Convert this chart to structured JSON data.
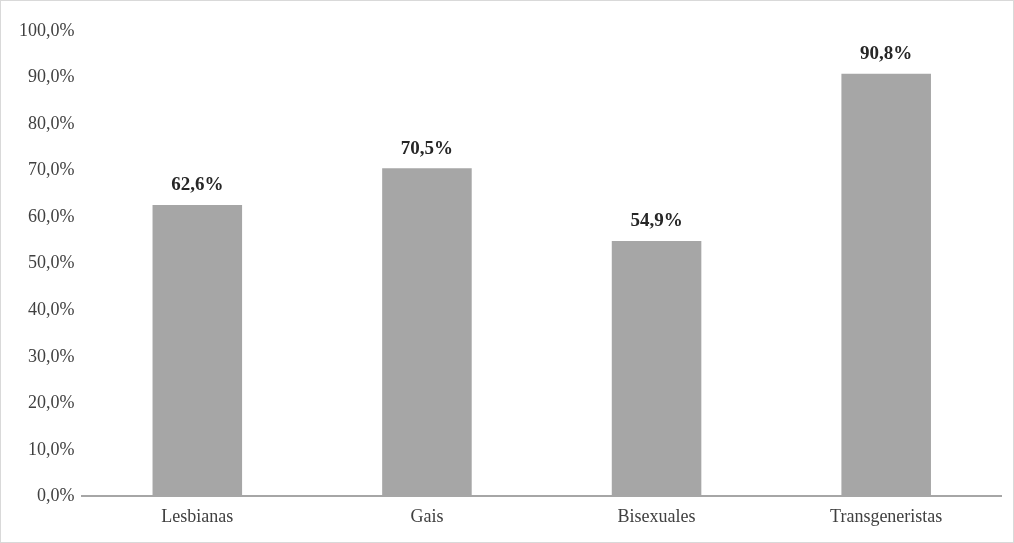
{
  "chart_data": {
    "type": "bar",
    "categories": [
      "Lesbianas",
      "Gais",
      "Bisexuales",
      "Transgeneristas"
    ],
    "values": [
      62.6,
      70.5,
      54.9,
      90.8
    ],
    "value_labels": [
      "62,6%",
      "70,5%",
      "54,9%",
      "90,8%"
    ],
    "color": "#a6a6a6",
    "ylim": [
      0,
      100
    ],
    "yticks": [
      {
        "value": 0,
        "label": "0,0%"
      },
      {
        "value": 10,
        "label": "10,0%"
      },
      {
        "value": 20,
        "label": "20,0%"
      },
      {
        "value": 30,
        "label": "30,0%"
      },
      {
        "value": 40,
        "label": "40,0%"
      },
      {
        "value": 50,
        "label": "50,0%"
      },
      {
        "value": 60,
        "label": "60,0%"
      },
      {
        "value": 70,
        "label": "70,0%"
      },
      {
        "value": 80,
        "label": "80,0%"
      },
      {
        "value": 90,
        "label": "90,0%"
      },
      {
        "value": 100,
        "label": "100,0%"
      }
    ],
    "grid": false,
    "legend": false
  }
}
